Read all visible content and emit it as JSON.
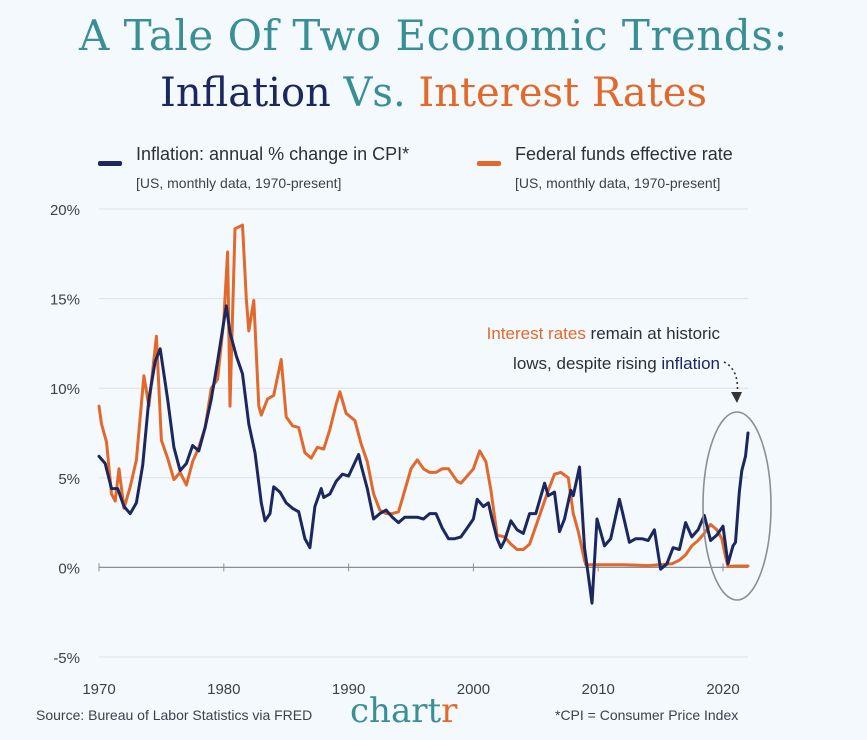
{
  "title": {
    "line1": "A Tale Of Two Economic Trends:",
    "line2_part1": "Inflation",
    "line2_part2": "Vs.",
    "line2_part3": "Interest Rates"
  },
  "legend": {
    "inflation": {
      "label": "Inflation: annual % change in CPI*",
      "sub": "[US, monthly data, 1970-present]"
    },
    "fed": {
      "label": "Federal funds effective rate",
      "sub": "[US, monthly data, 1970-present]"
    }
  },
  "annotation": {
    "part1": "Interest rates",
    "part2": " remain at historic",
    "part3": "lows, despite rising ",
    "part4": "inflation"
  },
  "footer": {
    "source": "Source: Bureau of Labor Statistics via FRED",
    "brand_part1": "chart",
    "brand_part2": "r",
    "note": "*CPI = Consumer Price Index"
  },
  "colors": {
    "title_teal": "#3a8f96",
    "navy": "#1c2760",
    "orange": "#e2692b",
    "grid": "#d9e2ea",
    "axis": "#8a8f96",
    "background": "#f3f9fd",
    "ellipse": "#8e8e8e"
  },
  "chart_data": {
    "type": "line",
    "title": "A Tale Of Two Economic Trends: Inflation Vs. Interest Rates",
    "xlabel": "",
    "ylabel": "",
    "xlim": [
      1970,
      2022
    ],
    "ylim": [
      -5,
      20
    ],
    "x_ticks": [
      1970,
      1980,
      1990,
      2000,
      2010,
      2020
    ],
    "x_tick_labels": [
      "1970",
      "1980",
      "1990",
      "2000",
      "2010",
      "2020"
    ],
    "y_ticks": [
      -5,
      0,
      5,
      10,
      15,
      20
    ],
    "y_tick_labels": [
      "-5%",
      "0%",
      "5%",
      "10%",
      "15%",
      "20%"
    ],
    "grid": "horizontal",
    "legend_position": "top",
    "series": [
      {
        "name": "Inflation: annual % change in CPI*",
        "color": "#1c2760",
        "points": [
          [
            1970.0,
            6.2
          ],
          [
            1970.5,
            5.8
          ],
          [
            1971.0,
            4.4
          ],
          [
            1971.5,
            4.4
          ],
          [
            1972.0,
            3.4
          ],
          [
            1972.5,
            3.0
          ],
          [
            1973.0,
            3.6
          ],
          [
            1973.5,
            5.7
          ],
          [
            1974.0,
            9.4
          ],
          [
            1974.5,
            11.5
          ],
          [
            1974.9,
            12.2
          ],
          [
            1975.5,
            9.4
          ],
          [
            1976.0,
            6.7
          ],
          [
            1976.5,
            5.4
          ],
          [
            1977.0,
            5.8
          ],
          [
            1977.5,
            6.8
          ],
          [
            1978.0,
            6.5
          ],
          [
            1978.5,
            7.8
          ],
          [
            1979.0,
            9.4
          ],
          [
            1979.5,
            11.5
          ],
          [
            1980.2,
            14.6
          ],
          [
            1980.5,
            13.1
          ],
          [
            1981.0,
            11.8
          ],
          [
            1981.5,
            10.8
          ],
          [
            1982.0,
            8.0
          ],
          [
            1982.5,
            6.4
          ],
          [
            1983.0,
            3.6
          ],
          [
            1983.3,
            2.6
          ],
          [
            1983.7,
            3.0
          ],
          [
            1984.0,
            4.5
          ],
          [
            1984.5,
            4.2
          ],
          [
            1985.0,
            3.6
          ],
          [
            1985.5,
            3.3
          ],
          [
            1986.0,
            3.1
          ],
          [
            1986.5,
            1.6
          ],
          [
            1986.9,
            1.1
          ],
          [
            1987.3,
            3.4
          ],
          [
            1987.8,
            4.4
          ],
          [
            1988.0,
            3.9
          ],
          [
            1988.5,
            4.1
          ],
          [
            1989.0,
            4.8
          ],
          [
            1989.5,
            5.2
          ],
          [
            1990.0,
            5.1
          ],
          [
            1990.8,
            6.3
          ],
          [
            1991.0,
            5.7
          ],
          [
            1991.5,
            4.4
          ],
          [
            1992.0,
            2.7
          ],
          [
            1992.5,
            3.0
          ],
          [
            1993.0,
            3.2
          ],
          [
            1993.5,
            2.8
          ],
          [
            1994.0,
            2.5
          ],
          [
            1994.5,
            2.8
          ],
          [
            1995.0,
            2.8
          ],
          [
            1995.5,
            2.8
          ],
          [
            1996.0,
            2.7
          ],
          [
            1996.5,
            3.0
          ],
          [
            1997.0,
            3.0
          ],
          [
            1997.5,
            2.2
          ],
          [
            1998.0,
            1.6
          ],
          [
            1998.5,
            1.6
          ],
          [
            1999.0,
            1.7
          ],
          [
            1999.5,
            2.2
          ],
          [
            2000.0,
            2.7
          ],
          [
            2000.3,
            3.8
          ],
          [
            2000.8,
            3.4
          ],
          [
            2001.2,
            3.6
          ],
          [
            2001.5,
            2.7
          ],
          [
            2001.9,
            1.6
          ],
          [
            2002.2,
            1.1
          ],
          [
            2002.5,
            1.5
          ],
          [
            2003.0,
            2.6
          ],
          [
            2003.5,
            2.1
          ],
          [
            2004.0,
            1.9
          ],
          [
            2004.5,
            3.0
          ],
          [
            2005.0,
            3.0
          ],
          [
            2005.7,
            4.7
          ],
          [
            2006.0,
            4.0
          ],
          [
            2006.5,
            4.2
          ],
          [
            2006.9,
            2.0
          ],
          [
            2007.3,
            2.7
          ],
          [
            2007.8,
            4.3
          ],
          [
            2008.0,
            4.0
          ],
          [
            2008.5,
            5.6
          ],
          [
            2008.9,
            1.1
          ],
          [
            2009.2,
            -0.4
          ],
          [
            2009.5,
            -2.0
          ],
          [
            2009.9,
            2.7
          ],
          [
            2010.5,
            1.2
          ],
          [
            2011.0,
            1.6
          ],
          [
            2011.7,
            3.8
          ],
          [
            2012.0,
            2.9
          ],
          [
            2012.5,
            1.4
          ],
          [
            2013.0,
            1.6
          ],
          [
            2013.5,
            1.6
          ],
          [
            2014.0,
            1.5
          ],
          [
            2014.5,
            2.1
          ],
          [
            2015.0,
            -0.1
          ],
          [
            2015.5,
            0.2
          ],
          [
            2016.0,
            1.1
          ],
          [
            2016.5,
            1.0
          ],
          [
            2017.0,
            2.5
          ],
          [
            2017.5,
            1.7
          ],
          [
            2018.0,
            2.1
          ],
          [
            2018.5,
            2.9
          ],
          [
            2019.0,
            1.5
          ],
          [
            2019.5,
            1.8
          ],
          [
            2020.0,
            2.3
          ],
          [
            2020.4,
            0.2
          ],
          [
            2020.8,
            1.2
          ],
          [
            2021.0,
            1.4
          ],
          [
            2021.3,
            4.2
          ],
          [
            2021.5,
            5.4
          ],
          [
            2021.8,
            6.2
          ],
          [
            2022.0,
            7.5
          ]
        ]
      },
      {
        "name": "Federal funds effective rate",
        "color": "#e2692b",
        "points": [
          [
            1970.0,
            9.0
          ],
          [
            1970.2,
            8.0
          ],
          [
            1970.6,
            7.0
          ],
          [
            1971.0,
            4.1
          ],
          [
            1971.3,
            3.7
          ],
          [
            1971.6,
            5.5
          ],
          [
            1972.0,
            3.3
          ],
          [
            1972.5,
            4.5
          ],
          [
            1973.0,
            6.0
          ],
          [
            1973.6,
            10.7
          ],
          [
            1974.0,
            9.0
          ],
          [
            1974.6,
            12.9
          ],
          [
            1975.0,
            7.1
          ],
          [
            1975.5,
            6.1
          ],
          [
            1976.0,
            4.9
          ],
          [
            1976.5,
            5.3
          ],
          [
            1977.0,
            4.6
          ],
          [
            1977.5,
            5.9
          ],
          [
            1978.0,
            6.7
          ],
          [
            1978.5,
            7.8
          ],
          [
            1979.0,
            10.0
          ],
          [
            1979.5,
            10.5
          ],
          [
            1980.0,
            13.8
          ],
          [
            1980.3,
            17.6
          ],
          [
            1980.5,
            9.0
          ],
          [
            1980.9,
            18.9
          ],
          [
            1981.5,
            19.1
          ],
          [
            1981.8,
            15.0
          ],
          [
            1982.0,
            13.2
          ],
          [
            1982.4,
            14.9
          ],
          [
            1982.8,
            9.0
          ],
          [
            1983.0,
            8.5
          ],
          [
            1983.5,
            9.4
          ],
          [
            1984.0,
            9.6
          ],
          [
            1984.6,
            11.6
          ],
          [
            1985.0,
            8.4
          ],
          [
            1985.5,
            7.9
          ],
          [
            1986.0,
            7.8
          ],
          [
            1986.5,
            6.4
          ],
          [
            1987.0,
            6.1
          ],
          [
            1987.5,
            6.7
          ],
          [
            1988.0,
            6.6
          ],
          [
            1988.5,
            7.7
          ],
          [
            1989.0,
            9.1
          ],
          [
            1989.3,
            9.8
          ],
          [
            1989.8,
            8.6
          ],
          [
            1990.5,
            8.2
          ],
          [
            1991.0,
            6.9
          ],
          [
            1991.5,
            5.9
          ],
          [
            1992.0,
            4.1
          ],
          [
            1992.5,
            3.2
          ],
          [
            1993.0,
            3.0
          ],
          [
            1993.5,
            3.0
          ],
          [
            1994.0,
            3.1
          ],
          [
            1994.5,
            4.3
          ],
          [
            1995.0,
            5.5
          ],
          [
            1995.5,
            6.0
          ],
          [
            1996.0,
            5.5
          ],
          [
            1996.5,
            5.3
          ],
          [
            1997.0,
            5.3
          ],
          [
            1997.5,
            5.5
          ],
          [
            1998.0,
            5.5
          ],
          [
            1998.7,
            4.8
          ],
          [
            1999.0,
            4.7
          ],
          [
            1999.5,
            5.1
          ],
          [
            2000.0,
            5.5
          ],
          [
            2000.5,
            6.5
          ],
          [
            2001.0,
            5.9
          ],
          [
            2001.4,
            4.3
          ],
          [
            2001.9,
            1.8
          ],
          [
            2002.5,
            1.7
          ],
          [
            2003.0,
            1.3
          ],
          [
            2003.5,
            1.0
          ],
          [
            2004.0,
            1.0
          ],
          [
            2004.5,
            1.3
          ],
          [
            2005.0,
            2.3
          ],
          [
            2005.5,
            3.3
          ],
          [
            2006.0,
            4.3
          ],
          [
            2006.5,
            5.2
          ],
          [
            2007.0,
            5.3
          ],
          [
            2007.6,
            5.0
          ],
          [
            2008.0,
            3.0
          ],
          [
            2008.4,
            2.0
          ],
          [
            2008.9,
            0.4
          ],
          [
            2009.0,
            0.15
          ],
          [
            2010.0,
            0.15
          ],
          [
            2012.0,
            0.15
          ],
          [
            2014.0,
            0.1
          ],
          [
            2015.9,
            0.2
          ],
          [
            2016.5,
            0.4
          ],
          [
            2017.0,
            0.7
          ],
          [
            2017.5,
            1.2
          ],
          [
            2018.0,
            1.5
          ],
          [
            2018.5,
            1.9
          ],
          [
            2019.0,
            2.4
          ],
          [
            2019.5,
            2.1
          ],
          [
            2019.9,
            1.6
          ],
          [
            2020.2,
            0.6
          ],
          [
            2020.4,
            0.05
          ],
          [
            2021.0,
            0.08
          ],
          [
            2022.0,
            0.08
          ]
        ]
      }
    ],
    "annotations": [
      {
        "text": "Interest rates remain at historic lows, despite rising inflation"
      }
    ]
  }
}
